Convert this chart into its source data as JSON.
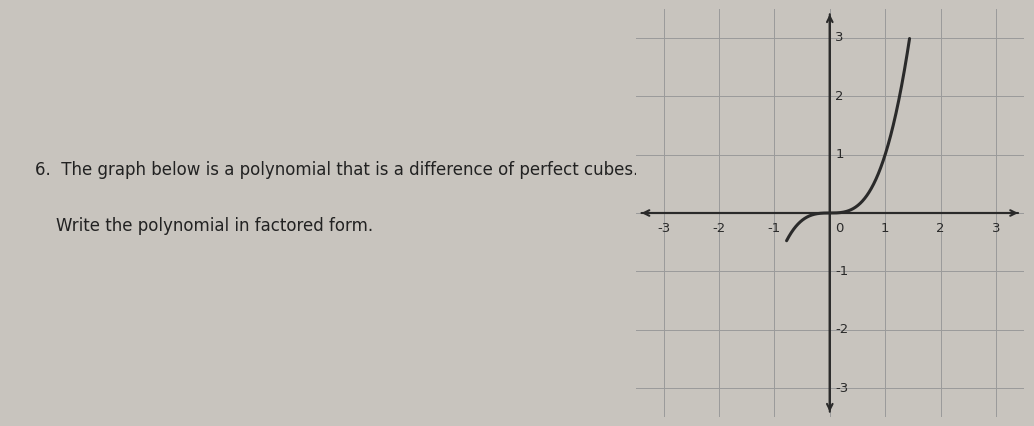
{
  "line1": "6.  The graph below is a polynomial that is a difference of perfect cubes.",
  "line2": "    Write the polynomial in factored form.",
  "background_color": "#c8c4be",
  "graph_bg_color": "#c8c4be",
  "xlim": [
    -3.5,
    3.5
  ],
  "ylim": [
    -3.5,
    3.5
  ],
  "xticks": [
    -3,
    -2,
    -1,
    0,
    1,
    2,
    3
  ],
  "yticks": [
    -3,
    -2,
    -1,
    1,
    2,
    3
  ],
  "curve_color": "#2a2a2a",
  "curve_linewidth": 2.2,
  "axis_color": "#2a2a2a",
  "grid_color": "#9a9a9a",
  "grid_linewidth": 0.7,
  "tick_fontsize": 9.5,
  "text_fontsize": 12,
  "x_start": -0.78,
  "x_end": 1.44
}
